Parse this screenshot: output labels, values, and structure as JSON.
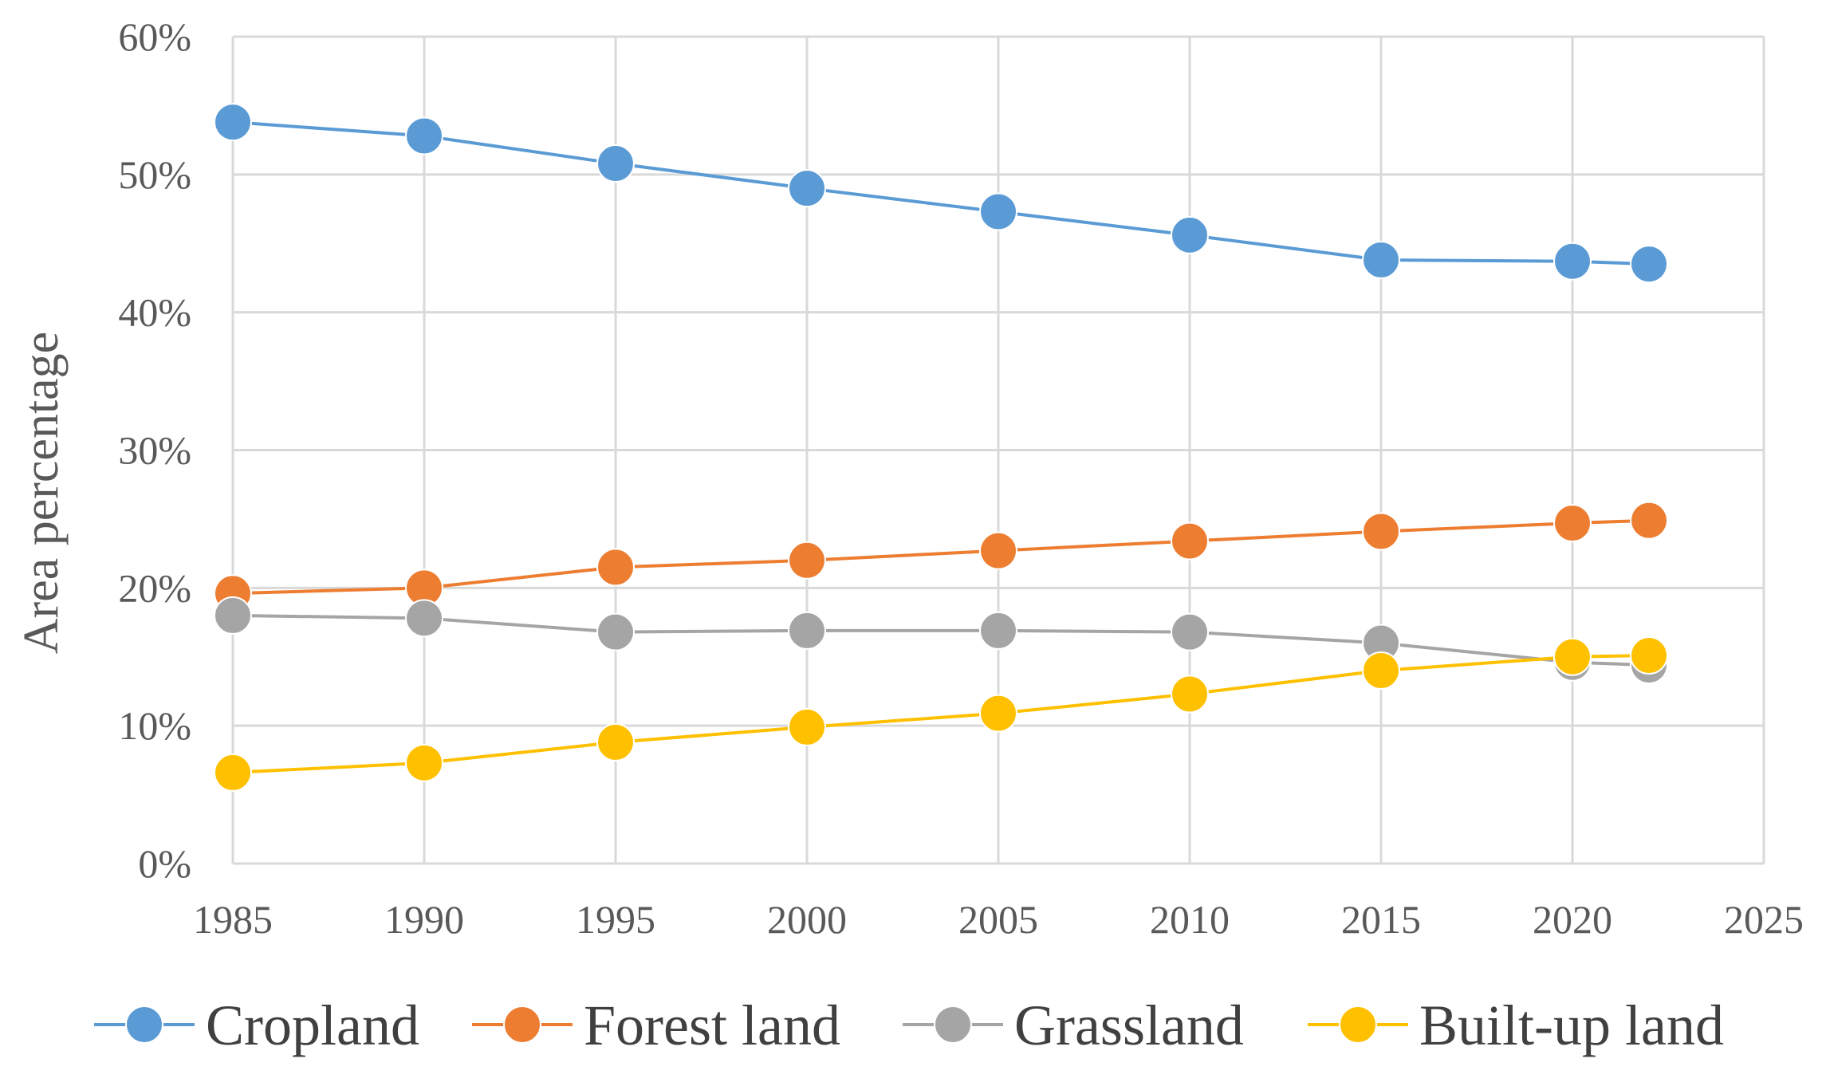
{
  "chart_data": {
    "type": "line",
    "title": "",
    "xlabel": "",
    "ylabel": "Area percentage",
    "xlim": [
      1985,
      2025
    ],
    "ylim": [
      0,
      60
    ],
    "x_ticks": [
      1985,
      1990,
      1995,
      2000,
      2005,
      2010,
      2015,
      2020,
      2025
    ],
    "x_tick_labels": [
      "1985",
      "1990",
      "1995",
      "2000",
      "2005",
      "2010",
      "2015",
      "2020",
      "2025"
    ],
    "y_ticks": [
      0,
      10,
      20,
      30,
      40,
      50,
      60
    ],
    "y_tick_labels": [
      "0%",
      "10%",
      "20%",
      "30%",
      "40%",
      "50%",
      "60%"
    ],
    "grid": true,
    "legend_position": "bottom",
    "x": [
      1985,
      1990,
      1995,
      2000,
      2005,
      2010,
      2015,
      2020,
      2022
    ],
    "series": [
      {
        "name": "Cropland",
        "color": "#5B9BD5",
        "values": [
          53.8,
          52.8,
          50.8,
          49.0,
          47.3,
          45.6,
          43.8,
          43.7,
          43.5
        ]
      },
      {
        "name": "Forest land",
        "color": "#ED7D31",
        "values": [
          19.6,
          20.0,
          21.5,
          22.0,
          22.7,
          23.4,
          24.1,
          24.7,
          24.9
        ]
      },
      {
        "name": "Grassland",
        "color": "#A5A5A5",
        "values": [
          18.0,
          17.8,
          16.8,
          16.9,
          16.9,
          16.8,
          16.0,
          14.6,
          14.4
        ]
      },
      {
        "name": "Built-up land",
        "color": "#FFC000",
        "values": [
          6.6,
          7.3,
          8.8,
          9.9,
          10.9,
          12.3,
          14.0,
          15.0,
          15.1
        ]
      }
    ]
  }
}
